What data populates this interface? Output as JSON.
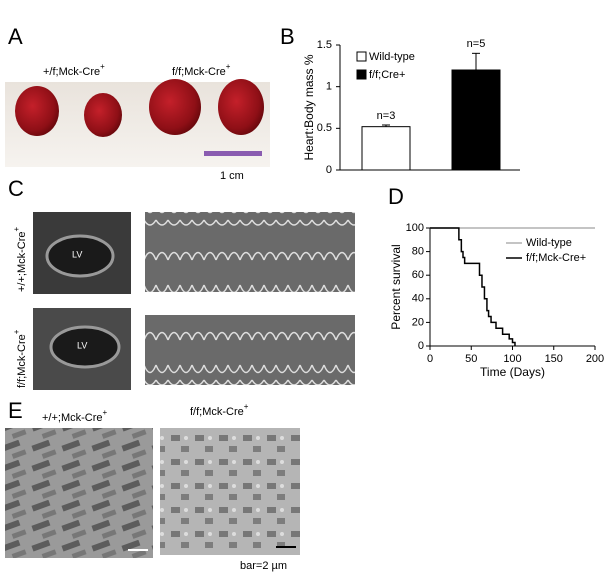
{
  "panel_a": {
    "letter": "A",
    "left_label": "+/f;Mck-Cre",
    "left_sup": "+",
    "right_label": "f/f;Mck-Cre",
    "right_sup": "+",
    "scale": "1 cm"
  },
  "panel_b": {
    "letter": "B"
  },
  "panel_c": {
    "letter": "C",
    "top_label": "+/+;Mck-Cre",
    "top_sup": "+",
    "bottom_label": "f/f;Mck-Cre",
    "bottom_sup": "+",
    "top_lv": "LV",
    "bottom_lv": "LV"
  },
  "panel_d": {
    "letter": "D"
  },
  "panel_e": {
    "letter": "E",
    "left_label": "+/+;Mck-Cre",
    "left_sup": "+",
    "right_label": "f/f;Mck-Cre",
    "right_sup": "+",
    "scale": "bar=2 µm"
  },
  "chart_data": [
    {
      "type": "bar",
      "ylabel": "Heart:Body mass %",
      "categories": [
        null
      ],
      "series": [
        {
          "name": "Wild-type",
          "color": "#ffffff",
          "values": [
            0.52
          ],
          "errors": [
            0.02
          ]
        },
        {
          "name": "f/f;Cre+",
          "color": "#000000",
          "values": [
            1.2
          ],
          "errors": [
            0.2
          ]
        }
      ],
      "annotations": [
        "n=3",
        "n=5"
      ],
      "ylim": [
        0,
        1.5
      ],
      "yticks": [
        0,
        0.5,
        1,
        1.5
      ]
    },
    {
      "type": "line",
      "xlabel": "Time (Days)",
      "ylabel": "Percent survival",
      "series": [
        {
          "name": "Wild-type",
          "color": "#b0b0b0",
          "x": [
            0,
            200
          ],
          "values": [
            100,
            100
          ]
        },
        {
          "name": "f/f;Mck-Cre+",
          "color": "#000000",
          "x": [
            0,
            35,
            35,
            38,
            38,
            40,
            40,
            42,
            42,
            60,
            60,
            63,
            63,
            66,
            66,
            69,
            69,
            71,
            71,
            74,
            74,
            80,
            80,
            88,
            88,
            96,
            96,
            100,
            100,
            103,
            103
          ],
          "values": [
            100,
            100,
            90,
            90,
            80,
            80,
            75,
            75,
            70,
            70,
            60,
            60,
            50,
            50,
            40,
            40,
            30,
            30,
            25,
            25,
            20,
            20,
            15,
            15,
            10,
            10,
            6,
            6,
            3,
            3,
            0
          ]
        }
      ],
      "xlim": [
        0,
        200
      ],
      "xticks": [
        0,
        50,
        100,
        150,
        200
      ],
      "ylim": [
        0,
        100
      ],
      "yticks": [
        0,
        20,
        40,
        60,
        80,
        100
      ]
    }
  ]
}
